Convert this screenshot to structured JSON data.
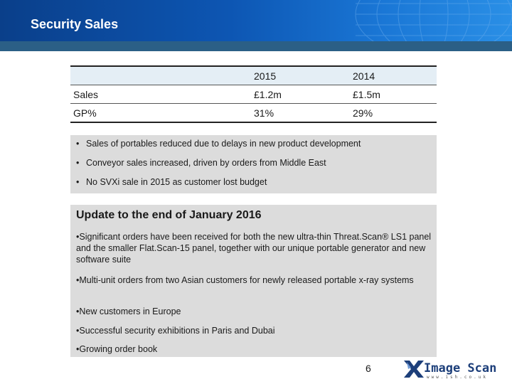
{
  "header": {
    "title": "Security Sales"
  },
  "table": {
    "columns": [
      "",
      "2015",
      "2014"
    ],
    "rows": [
      [
        "Sales",
        "£1.2m",
        "£1.5m"
      ],
      [
        "GP%",
        "31%",
        "29%"
      ]
    ]
  },
  "bullets": [
    "Sales of portables reduced due to delays in new product development",
    "Conveyor sales increased, driven by orders from Middle East",
    "No SVXi sale in 2015 as customer lost budget"
  ],
  "bullet_char": "•",
  "update": {
    "heading": "Update to the end of January 2016",
    "items": [
      "•Significant orders have been received for both the new ultra-thin Threat.Scan® LS1 panel and the smaller Flat.Scan-15 panel, together with our unique portable generator and new software suite",
      "•Multi-unit orders from two Asian customers for newly released portable x-ray systems",
      "•New customers in Europe",
      "•Successful security exhibitions in Paris and Dubai",
      "•Growing order book"
    ]
  },
  "page_number": "6",
  "logo": {
    "name": "Image Scan",
    "url": "www.ish.co.uk"
  },
  "colors": {
    "header": "#0d56b3",
    "band": "#2b5f86",
    "box": "#dcdcdc",
    "table_head": "#e4eef5"
  }
}
